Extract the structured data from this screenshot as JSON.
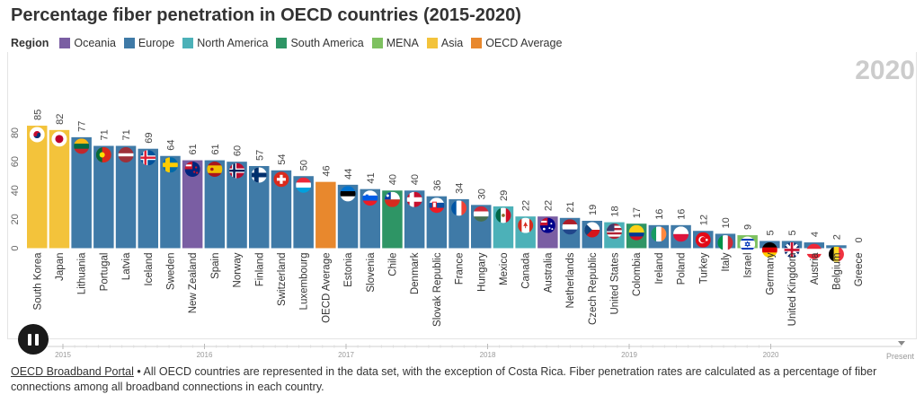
{
  "title": "Percentage fiber penetration in OECD countries (2015-2020)",
  "legend": {
    "title": "Region",
    "items": [
      {
        "label": "Oceania",
        "color": "#7a5ea3"
      },
      {
        "label": "Europe",
        "color": "#3f7aa7"
      },
      {
        "label": "North America",
        "color": "#4cb1b8"
      },
      {
        "label": "South America",
        "color": "#2e9565"
      },
      {
        "label": "MENA",
        "color": "#7ec160"
      },
      {
        "label": "Asia",
        "color": "#f3c33b"
      },
      {
        "label": "OECD Average",
        "color": "#e8882d"
      }
    ]
  },
  "current_year": "2020",
  "chart_data": {
    "type": "bar",
    "title": "Percentage fiber penetration in OECD countries (2015-2020)",
    "ylim": [
      0,
      90
    ],
    "yticks": [
      0,
      20,
      40,
      60,
      80
    ],
    "categories": [
      "South Korea",
      "Japan",
      "Lithuania",
      "Portugal",
      "Latvia",
      "Iceland",
      "Sweden",
      "New Zealand",
      "Spain",
      "Norway",
      "Finland",
      "Switzerland",
      "Luxembourg",
      "OECD Average",
      "Estonia",
      "Slovenia",
      "Chile",
      "Denmark",
      "Slovak Republic",
      "France",
      "Hungary",
      "Mexico",
      "Canada",
      "Australia",
      "Netherlands",
      "Czech Republic",
      "United States",
      "Colombia",
      "Ireland",
      "Poland",
      "Turkey",
      "Italy",
      "Israel",
      "Germany",
      "United Kingdom",
      "Austria",
      "Belgium",
      "Greece"
    ],
    "values": [
      85,
      82,
      77,
      71,
      71,
      69,
      64,
      61,
      61,
      60,
      57,
      54,
      50,
      46,
      44,
      41,
      40,
      40,
      36,
      34,
      30,
      29,
      22,
      22,
      21,
      19,
      18,
      17,
      16,
      16,
      12,
      10,
      9,
      5,
      5,
      4,
      2,
      0
    ],
    "regions": [
      "Asia",
      "Asia",
      "Europe",
      "Europe",
      "Europe",
      "Europe",
      "Europe",
      "Oceania",
      "Europe",
      "Europe",
      "Europe",
      "Europe",
      "Europe",
      "OECD Average",
      "Europe",
      "Europe",
      "South America",
      "Europe",
      "Europe",
      "Europe",
      "Europe",
      "North America",
      "North America",
      "Oceania",
      "Europe",
      "Europe",
      "North America",
      "South America",
      "Europe",
      "Europe",
      "Europe",
      "Europe",
      "MENA",
      "Europe",
      "Europe",
      "Europe",
      "Europe",
      "Europe"
    ],
    "flags": [
      "south-korea-flag",
      "japan-flag",
      "lithuania-flag",
      "portugal-flag",
      "latvia-flag",
      "iceland-flag",
      "sweden-flag",
      "new-zealand-flag",
      "spain-flag",
      "norway-flag",
      "finland-flag",
      "switzerland-flag",
      "luxembourg-flag",
      "",
      "estonia-flag",
      "slovenia-flag",
      "chile-flag",
      "denmark-flag",
      "slovakia-flag",
      "france-flag",
      "hungary-flag",
      "mexico-flag",
      "canada-flag",
      "australia-flag",
      "netherlands-flag",
      "czech-flag",
      "usa-flag",
      "colombia-flag",
      "ireland-flag",
      "poland-flag",
      "turkey-flag",
      "italy-flag",
      "israel-flag",
      "germany-flag",
      "uk-flag",
      "austria-flag",
      "belgium-flag",
      "greece-flag"
    ]
  },
  "timeline": {
    "years": [
      "2015",
      "2016",
      "2017",
      "2018",
      "2019",
      "2020"
    ],
    "end_label": "Present"
  },
  "footnote": {
    "link_text": "OECD Broadband Portal",
    "text": " • All OECD countries are represented in the data set, with the exception of Costa Rica. Fiber penetration rates are calculated as a percentage of fiber connections among all broadband connections in each country."
  }
}
